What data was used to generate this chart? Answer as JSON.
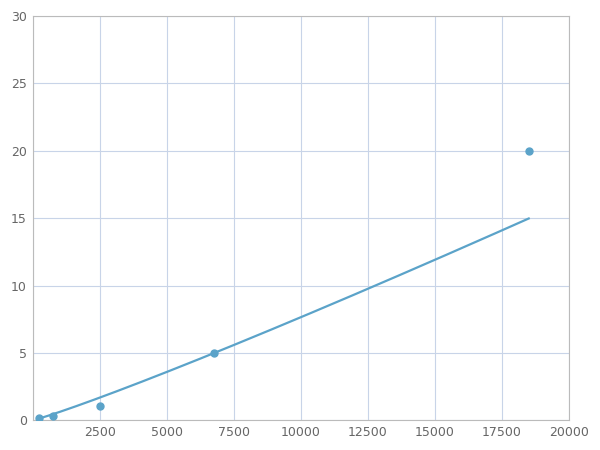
{
  "x": [
    250,
    750,
    2500,
    6750,
    18500
  ],
  "y": [
    0.2,
    0.35,
    1.1,
    5.0,
    20.0
  ],
  "line_color": "#5ba3c9",
  "marker_color": "#5ba3c9",
  "marker_size": 5,
  "line_width": 1.6,
  "xlim": [
    0,
    20000
  ],
  "ylim": [
    0,
    30
  ],
  "xticks": [
    0,
    2500,
    5000,
    7500,
    10000,
    12500,
    15000,
    17500,
    20000
  ],
  "yticks": [
    0,
    5,
    10,
    15,
    20,
    25,
    30
  ],
  "grid_color": "#c8d4e8",
  "background_color": "#ffffff",
  "spine_color": "#bbbbbb",
  "tick_label_color": "#666666",
  "tick_fontsize": 9
}
